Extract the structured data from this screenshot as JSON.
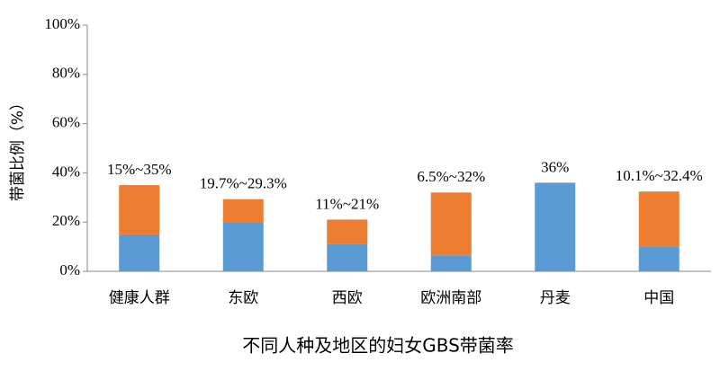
{
  "chart_data": {
    "type": "stacked_bar",
    "x_label": "不同人种及地区的妇女GBS带菌率",
    "y_label": "带菌比例（%）",
    "categories": [
      "健康人群",
      "东欧",
      "西欧",
      "欧洲南部",
      "丹麦",
      "中国"
    ],
    "series": [
      {
        "color": "#5b9bd5",
        "values": [
          15,
          19.7,
          11,
          6.5,
          36,
          10.1
        ]
      },
      {
        "color": "#ed7d31",
        "values": [
          20,
          9.6,
          10,
          25.5,
          0,
          22.3
        ]
      }
    ],
    "bar_labels": [
      "15%~35%",
      "19.7%~29.3%",
      "11%~21%",
      "6.5%~32%",
      "36%",
      "10.1%~32.4%"
    ],
    "ylim": [
      0,
      100
    ],
    "yticks": [
      {
        "value": 0,
        "label": "0%"
      },
      {
        "value": 20,
        "label": "20%"
      },
      {
        "value": 40,
        "label": "40%"
      },
      {
        "value": 60,
        "label": "60%"
      },
      {
        "value": 80,
        "label": "80%"
      },
      {
        "value": 100,
        "label": "100%"
      }
    ],
    "grid": false
  }
}
